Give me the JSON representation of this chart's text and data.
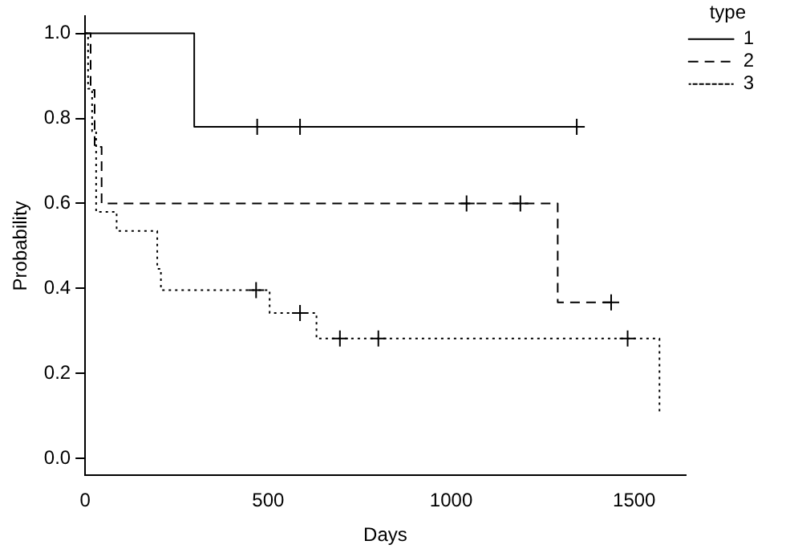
{
  "chart_data": {
    "type": "step",
    "xlabel": "Days",
    "ylabel": "Probability",
    "legend_title": "type",
    "legend": "top right",
    "grid": false,
    "xlim": [
      0,
      1640
    ],
    "xticks": [
      0,
      500,
      1000,
      1500
    ],
    "ylim": [
      -0.04,
      1.04
    ],
    "yticks": [
      {
        "value": 0,
        "label": "0.0"
      },
      {
        "value": 0.2,
        "label": "0.2"
      },
      {
        "value": 0.4,
        "label": "0.4"
      },
      {
        "value": 0.6,
        "label": "0.6"
      },
      {
        "value": 0.8,
        "label": "0.8"
      },
      {
        "value": 1,
        "label": "1.0"
      }
    ],
    "series": [
      {
        "name": "1",
        "line_style": "solid",
        "color": "#000000",
        "x": [
          0,
          298,
          1343
        ],
        "values": [
          1,
          0.78,
          0.78
        ]
      },
      {
        "name": "2",
        "line_style": "dashed",
        "color": "#000000",
        "x": [
          0,
          15,
          26,
          45,
          1291,
          1437
        ],
        "values": [
          1,
          0.867,
          0.733,
          0.6,
          0.367,
          0.367
        ]
      },
      {
        "name": "3",
        "line_style": "dotted",
        "color": "#000000",
        "x": [
          0,
          8,
          19,
          30,
          86,
          197,
          207,
          504,
          632,
          1569
        ],
        "values": [
          1,
          0.87,
          0.77,
          0.58,
          0.535,
          0.446,
          0.396,
          0.342,
          0.282,
          0.11
        ]
      },
      {
        "type": "scatter",
        "marker": "cross",
        "color": "#000000",
        "x": [
          470,
          587,
          1343
        ],
        "values": [
          0.78,
          0.78,
          0.78
        ]
      },
      {
        "type": "scatter",
        "marker": "cross",
        "color": "#000000",
        "x": [
          1042,
          1189,
          1437
        ],
        "values": [
          0.6,
          0.6,
          0.367
        ]
      },
      {
        "type": "scatter",
        "marker": "cross",
        "color": "#000000",
        "x": [
          467,
          587,
          696,
          801,
          1482
        ],
        "values": [
          0.396,
          0.342,
          0.282,
          0.282,
          0.282
        ]
      }
    ]
  }
}
